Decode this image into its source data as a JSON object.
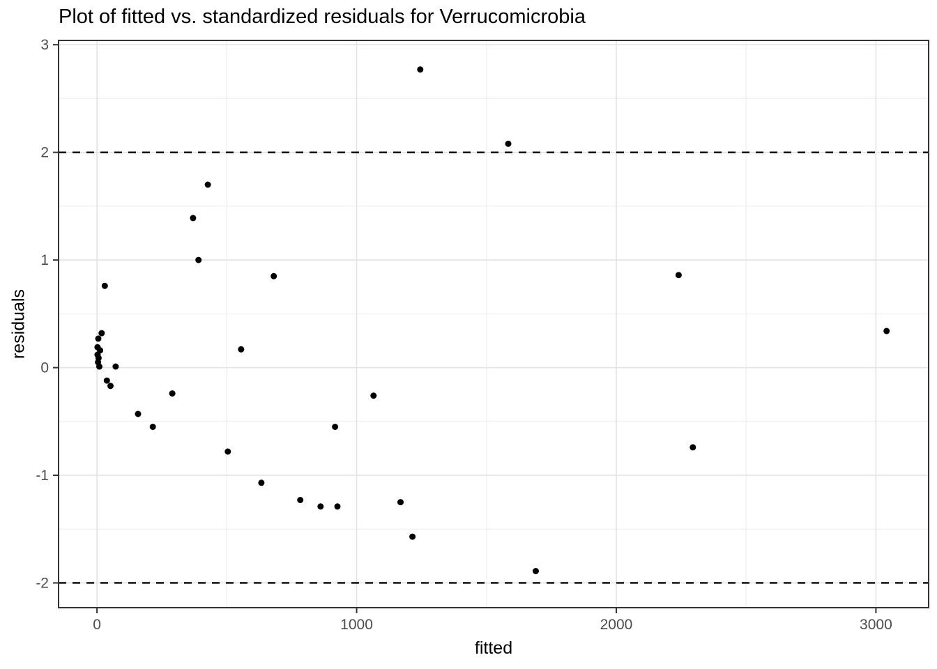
{
  "chart_data": {
    "type": "scatter",
    "title": "Plot of fitted vs. standardized residuals for Verrucomicrobia",
    "xlabel": "fitted",
    "ylabel": "residuals",
    "xlim": [
      -148,
      3203
    ],
    "ylim": [
      -2.23,
      3.04
    ],
    "x_major_ticks": [
      0,
      1000,
      2000,
      3000
    ],
    "x_minor_ticks": [
      500,
      1500,
      2500
    ],
    "y_major_ticks": [
      -2,
      -1,
      0,
      1,
      2,
      3
    ],
    "y_minor_ticks": [
      -1.5,
      -0.5,
      0.5,
      1.5,
      2.5
    ],
    "threshold_lines": [
      2,
      -2
    ],
    "grid": "major+minor",
    "legend_position": "none",
    "colors": {
      "point": "#000000",
      "threshold": "#000000",
      "grid_major": "#e3e3e3",
      "grid_minor": "#efefef",
      "panel_border": "#333333",
      "tick_mark": "#333333",
      "tick_label": "#4d4d4d",
      "text": "#000000",
      "background": "#ffffff"
    },
    "points": [
      [
        30,
        0.76
      ],
      [
        18,
        0.32
      ],
      [
        5,
        0.27
      ],
      [
        2,
        0.19
      ],
      [
        12,
        0.16
      ],
      [
        2,
        0.12
      ],
      [
        6,
        0.09
      ],
      [
        4,
        0.05
      ],
      [
        9,
        0.01
      ],
      [
        72,
        0.01
      ],
      [
        38,
        -0.12
      ],
      [
        52,
        -0.17
      ],
      [
        158,
        -0.43
      ],
      [
        215,
        -0.55
      ],
      [
        290,
        -0.24
      ],
      [
        370,
        1.39
      ],
      [
        391,
        1.0
      ],
      [
        427,
        1.7
      ],
      [
        504,
        -0.78
      ],
      [
        555,
        0.17
      ],
      [
        633,
        -1.07
      ],
      [
        681,
        0.85
      ],
      [
        783,
        -1.23
      ],
      [
        861,
        -1.29
      ],
      [
        917,
        -0.55
      ],
      [
        926,
        -1.29
      ],
      [
        1065,
        -0.26
      ],
      [
        1169,
        -1.25
      ],
      [
        1215,
        -1.57
      ],
      [
        1245,
        2.77
      ],
      [
        1584,
        2.08
      ],
      [
        1690,
        -1.89
      ],
      [
        2240,
        0.86
      ],
      [
        2295,
        -0.74
      ],
      [
        3041,
        0.34
      ]
    ]
  }
}
